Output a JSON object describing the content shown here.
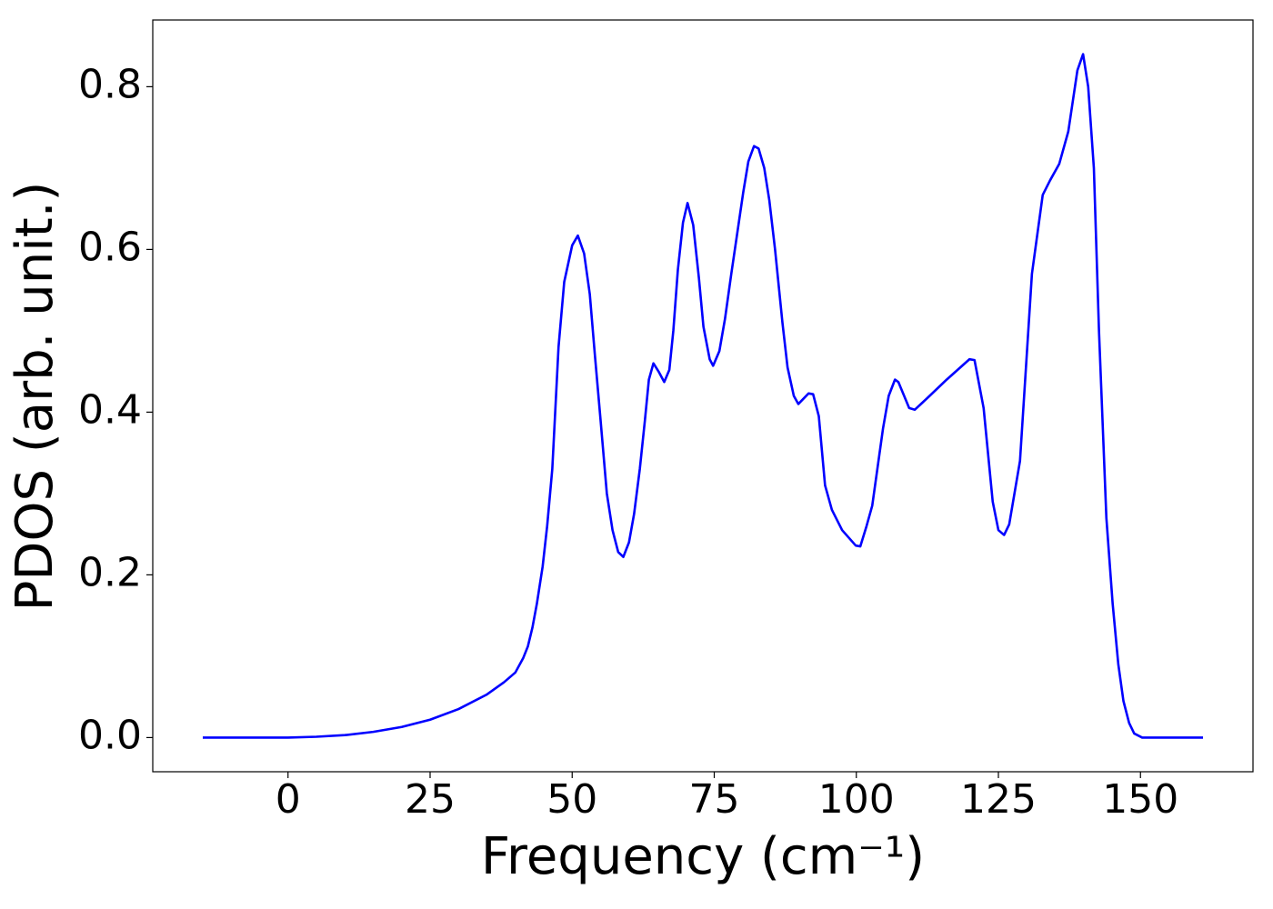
{
  "chart_data": {
    "type": "line",
    "x_label": "Frequency (cm⁻¹)",
    "y_label": "PDOS (arb. unit.)",
    "color": "#0000ff",
    "x": [
      -15,
      -10,
      -5,
      0,
      5,
      10,
      15,
      20,
      25,
      30,
      35,
      38,
      40,
      41.4,
      42.2,
      43,
      43.8,
      44.8,
      45.6,
      46.5,
      47.6,
      48.6,
      50,
      51,
      52.1,
      53.1,
      54,
      55,
      56.1,
      57.1,
      58.1,
      59,
      60,
      60.9,
      61.9,
      62.8,
      63.5,
      64.3,
      65.2,
      66.2,
      67.1,
      67.8,
      68.6,
      69.5,
      70.3,
      71.3,
      72.3,
      73.1,
      74.2,
      74.8,
      75.9,
      76.9,
      78,
      80.1,
      81,
      82,
      82.8,
      83.8,
      84.7,
      85.7,
      87,
      87.9,
      89,
      89.8,
      91.6,
      92.4,
      93.4,
      94.5,
      95.7,
      97.5,
      99.9,
      100.7,
      101.8,
      102.8,
      103.7,
      104.7,
      105.7,
      106.8,
      107.4,
      109.3,
      110.3,
      112.9,
      115.9,
      119.9,
      120.8,
      122.4,
      124,
      125,
      126,
      126.9,
      128.8,
      130.9,
      132.8,
      134.1,
      135.7,
      137.3,
      138.9,
      139.9,
      140.8,
      141.8,
      142.7,
      144,
      145.1,
      146.1,
      147,
      148,
      148.9,
      150.3,
      155,
      161
    ],
    "values": [
      0,
      0,
      0,
      0,
      0.001,
      0.003,
      0.007,
      0.013,
      0.022,
      0.035,
      0.053,
      0.068,
      0.08,
      0.098,
      0.112,
      0.135,
      0.165,
      0.21,
      0.26,
      0.33,
      0.48,
      0.56,
      0.605,
      0.617,
      0.595,
      0.545,
      0.47,
      0.39,
      0.3,
      0.255,
      0.228,
      0.222,
      0.24,
      0.275,
      0.33,
      0.39,
      0.44,
      0.46,
      0.45,
      0.437,
      0.452,
      0.5,
      0.575,
      0.633,
      0.657,
      0.63,
      0.565,
      0.505,
      0.465,
      0.457,
      0.475,
      0.515,
      0.57,
      0.67,
      0.708,
      0.727,
      0.724,
      0.7,
      0.66,
      0.6,
      0.51,
      0.455,
      0.42,
      0.41,
      0.423,
      0.422,
      0.395,
      0.31,
      0.28,
      0.255,
      0.236,
      0.235,
      0.26,
      0.285,
      0.33,
      0.38,
      0.42,
      0.44,
      0.437,
      0.405,
      0.403,
      0.42,
      0.44,
      0.465,
      0.464,
      0.405,
      0.29,
      0.255,
      0.249,
      0.262,
      0.34,
      0.57,
      0.667,
      0.685,
      0.705,
      0.745,
      0.82,
      0.84,
      0.8,
      0.7,
      0.5,
      0.27,
      0.165,
      0.09,
      0.045,
      0.018,
      0.005,
      0,
      0,
      0
    ],
    "xlim": [
      -23.8,
      169.8
    ],
    "xticks": [
      0,
      25,
      50,
      75,
      100,
      125,
      150
    ],
    "ylim": [
      -0.042,
      0.882
    ],
    "yticks": [
      {
        "value": 0,
        "label": "0.0"
      },
      0.2,
      0.4,
      0.6,
      0.8
    ],
    "grid": false
  }
}
